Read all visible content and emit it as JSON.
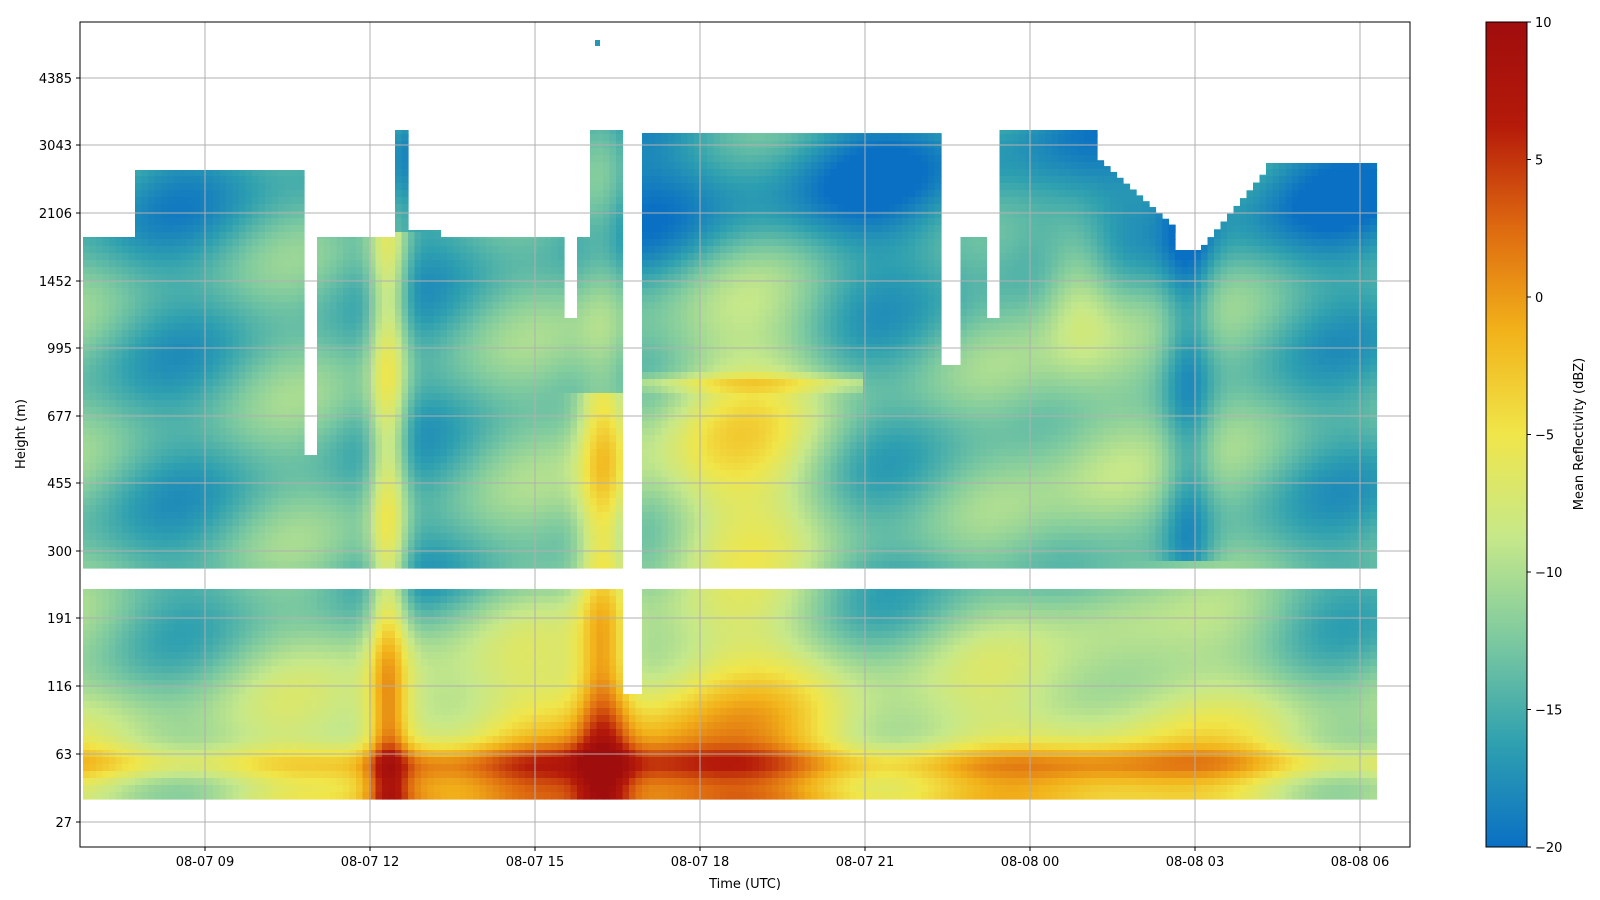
{
  "chart_data": {
    "type": "heatmap",
    "title": "",
    "xlabel": "Time (UTC)",
    "ylabel": "Height (m)",
    "x_ticks": [
      "08-07 09",
      "08-07 12",
      "08-07 15",
      "08-07 18",
      "08-07 21",
      "08-08 00",
      "08-08 03",
      "08-08 06"
    ],
    "y_ticks": [
      "27",
      "63",
      "116",
      "191",
      "300",
      "455",
      "677",
      "995",
      "1452",
      "2106",
      "3043",
      "4385"
    ],
    "grid": true,
    "colorbar": {
      "label": "Mean Reflectivity (dBZ)",
      "range": [
        -20,
        10
      ],
      "ticks": [
        "10",
        "5",
        "0",
        "−5",
        "−10",
        "−15",
        "−20"
      ],
      "colors": [
        "#0a70c4",
        "#2ea0b0",
        "#7cc9a0",
        "#c6e88a",
        "#f0e64a",
        "#f2b21a",
        "#de6a10",
        "#b51a0a",
        "#a00d0d"
      ]
    },
    "features": {
      "missing_layer_height_m": [
        230,
        280
      ],
      "missing_column_time": "08-07 16:30",
      "strong_echo_layer": "near surface 40-120 m, up to ~8 dBZ around 08-07 16-18",
      "cloud_top_m": [
        2700,
        3200
      ]
    }
  }
}
